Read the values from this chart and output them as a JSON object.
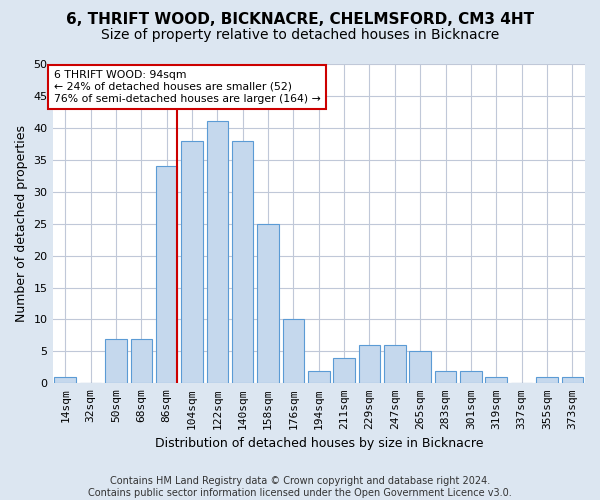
{
  "title1": "6, THRIFT WOOD, BICKNACRE, CHELMSFORD, CM3 4HT",
  "title2": "Size of property relative to detached houses in Bicknacre",
  "xlabel": "Distribution of detached houses by size in Bicknacre",
  "ylabel": "Number of detached properties",
  "categories": [
    "14sqm",
    "32sqm",
    "50sqm",
    "68sqm",
    "86sqm",
    "104sqm",
    "122sqm",
    "140sqm",
    "158sqm",
    "176sqm",
    "194sqm",
    "211sqm",
    "229sqm",
    "247sqm",
    "265sqm",
    "283sqm",
    "301sqm",
    "319sqm",
    "337sqm",
    "355sqm",
    "373sqm"
  ],
  "values": [
    1,
    0,
    7,
    7,
    34,
    38,
    41,
    38,
    25,
    10,
    2,
    4,
    6,
    6,
    5,
    2,
    2,
    1,
    0,
    1,
    1
  ],
  "bar_color": "#c5d8ed",
  "bar_edge_color": "#5b9bd5",
  "vline_color": "#cc0000",
  "annotation_line1": "6 THRIFT WOOD: 94sqm",
  "annotation_line2": "← 24% of detached houses are smaller (52)",
  "annotation_line3": "76% of semi-detached houses are larger (164) →",
  "ylim": [
    0,
    50
  ],
  "yticks": [
    0,
    5,
    10,
    15,
    20,
    25,
    30,
    35,
    40,
    45,
    50
  ],
  "background_color": "#dce6f1",
  "plot_bg_color": "#ffffff",
  "footer": "Contains HM Land Registry data © Crown copyright and database right 2024.\nContains public sector information licensed under the Open Government Licence v3.0.",
  "title1_fontsize": 11,
  "title2_fontsize": 10,
  "xlabel_fontsize": 9,
  "ylabel_fontsize": 9,
  "tick_fontsize": 8,
  "footer_fontsize": 7
}
